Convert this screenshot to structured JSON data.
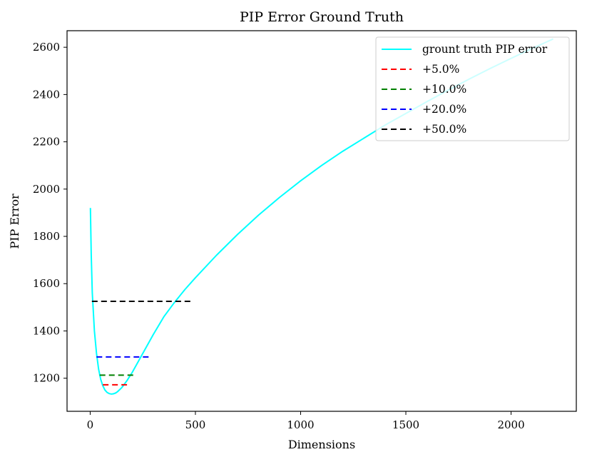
{
  "chart_data": {
    "type": "line",
    "title": "PIP Error Ground Truth",
    "xlabel": "Dimensions",
    "ylabel": "PIP Error",
    "xlim": [
      -110,
      2310
    ],
    "ylim": [
      1060,
      2670
    ],
    "xticks": [
      0,
      500,
      1000,
      1500,
      2000
    ],
    "yticks": [
      1200,
      1400,
      1600,
      1800,
      2000,
      2200,
      2400,
      2600
    ],
    "grid": false,
    "legend_position": "top-right",
    "series": [
      {
        "name": "grount truth PIP error",
        "style": "solid",
        "color": "#00ffff",
        "x": [
          1,
          5,
          10,
          20,
          30,
          40,
          50,
          60,
          70,
          80,
          90,
          100,
          110,
          120,
          130,
          150,
          175,
          200,
          250,
          300,
          350,
          400,
          450,
          500,
          600,
          700,
          800,
          900,
          1000,
          1100,
          1200,
          1300,
          1400,
          1500,
          1600,
          1700,
          1800,
          1900,
          2000,
          2100,
          2200
        ],
        "y": [
          1920,
          1720,
          1560,
          1400,
          1305,
          1238,
          1195,
          1168,
          1150,
          1140,
          1135,
          1133,
          1134,
          1137,
          1143,
          1160,
          1190,
          1225,
          1305,
          1385,
          1460,
          1520,
          1575,
          1625,
          1720,
          1808,
          1890,
          1965,
          2035,
          2100,
          2160,
          2215,
          2270,
          2320,
          2370,
          2418,
          2465,
          2510,
          2553,
          2595,
          2635
        ]
      },
      {
        "name": "+5.0%",
        "style": "dashed",
        "color": "#ff0000",
        "x": [
          60,
          175
        ],
        "y": [
          1172,
          1172
        ]
      },
      {
        "name": "+10.0%",
        "style": "dashed",
        "color": "#008000",
        "x": [
          45,
          210
        ],
        "y": [
          1213,
          1213
        ]
      },
      {
        "name": "+20.0%",
        "style": "dashed",
        "color": "#0000ff",
        "x": [
          30,
          280
        ],
        "y": [
          1290,
          1290
        ]
      },
      {
        "name": "+50.0%",
        "style": "dashed",
        "color": "#000000",
        "x": [
          8,
          480
        ],
        "y": [
          1525,
          1525
        ]
      }
    ]
  }
}
